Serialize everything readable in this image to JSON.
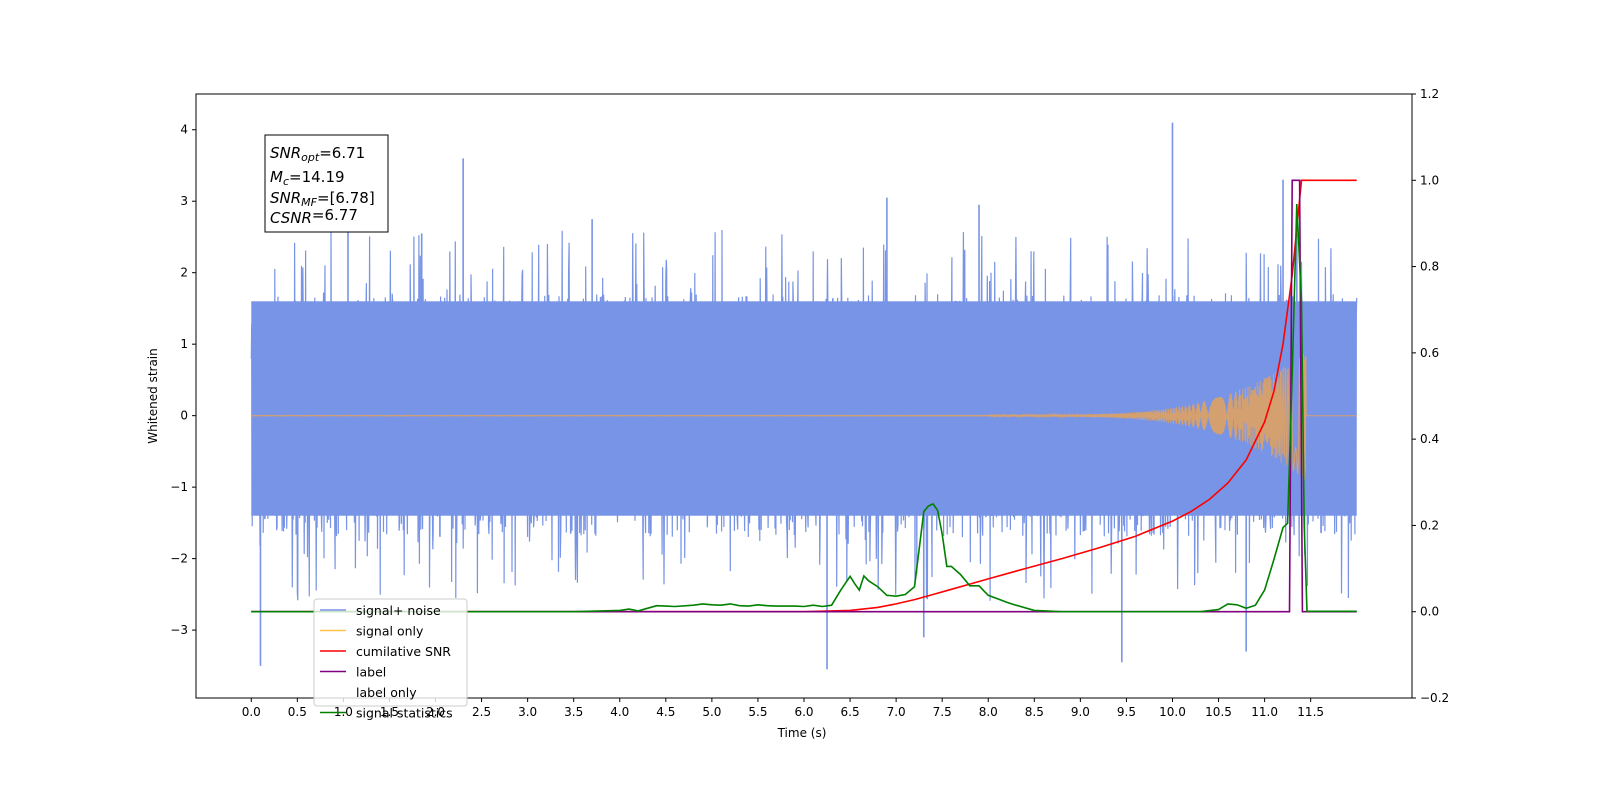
{
  "chart_data": {
    "type": "line",
    "xlabel": "Time (s)",
    "ylabel_left": "Whitened strain",
    "ylabel_right": "",
    "xlim": [
      -0.6,
      12.6
    ],
    "ylim_left": [
      -3.95,
      4.5
    ],
    "ylim_right": [
      -0.2,
      1.2
    ],
    "x_ticks": [
      "0.0",
      "0.5",
      "1.0",
      "1.5",
      "2.0",
      "2.5",
      "3.0",
      "3.5",
      "4.0",
      "4.5",
      "5.0",
      "5.5",
      "6.0",
      "6.5",
      "7.0",
      "7.5",
      "8.0",
      "8.5",
      "9.0",
      "9.5",
      "10.0",
      "10.5",
      "11.0",
      "11.5"
    ],
    "y_ticks_left": [
      "−3",
      "−2",
      "−1",
      "0",
      "1",
      "2",
      "3",
      "4"
    ],
    "y_ticks_right": [
      "−0.2",
      "0.0",
      "0.2",
      "0.4",
      "0.6",
      "0.8",
      "1.0",
      "1.2"
    ],
    "grid": false,
    "legend_position": "lower-left",
    "annotation": {
      "lines": [
        {
          "label": "SNR",
          "sub": "opt",
          "value": "=6.71"
        },
        {
          "label": "M",
          "sub": "c",
          "value": "=14.19"
        },
        {
          "label": "SNR",
          "sub": "MF",
          "value": "=[6.78]"
        },
        {
          "label": "CSNR",
          "sub": "",
          "value": "=6.77"
        }
      ]
    },
    "series": [
      {
        "name": "signal+ noise",
        "axis": "left",
        "color": "#7894e6",
        "kind": "noise",
        "x_range": [
          0.0,
          12.0
        ],
        "band": [
          -1.4,
          1.6
        ],
        "peaks": [
          [
            0.1,
            -3.5
          ],
          [
            1.05,
            2.95
          ],
          [
            2.3,
            3.6
          ],
          [
            6.25,
            -3.55
          ],
          [
            6.9,
            3.05
          ],
          [
            7.3,
            -3.1
          ],
          [
            9.45,
            -3.45
          ],
          [
            10.0,
            4.1
          ],
          [
            10.8,
            -3.3
          ],
          [
            11.2,
            3.3
          ],
          [
            11.35,
            2.55
          ],
          [
            1.85,
            2.55
          ],
          [
            3.7,
            2.75
          ],
          [
            7.9,
            2.95
          ]
        ]
      },
      {
        "name": "signal only",
        "axis": "left",
        "color": "#ffc24a",
        "kind": "chirp",
        "x_range": [
          0.0,
          12.0
        ]
      },
      {
        "name": "cumilative SNR",
        "axis": "right",
        "color": "#ff0000",
        "kind": "line",
        "x": [
          0,
          6.0,
          6.5,
          6.8,
          7.0,
          7.2,
          7.4,
          7.6,
          7.8,
          8.0,
          8.4,
          8.8,
          9.2,
          9.6,
          10.0,
          10.2,
          10.4,
          10.6,
          10.8,
          11.0,
          11.1,
          11.2,
          11.3,
          11.4,
          11.5,
          12.0
        ],
        "y": [
          0,
          0,
          0.003,
          0.01,
          0.018,
          0.028,
          0.04,
          0.052,
          0.064,
          0.076,
          0.1,
          0.123,
          0.148,
          0.175,
          0.21,
          0.232,
          0.26,
          0.298,
          0.352,
          0.44,
          0.51,
          0.62,
          0.78,
          1.0,
          1.0,
          1.0
        ]
      },
      {
        "name": "label",
        "axis": "right",
        "color": "#800080",
        "kind": "line",
        "x": [
          0,
          11.27,
          11.3,
          11.38,
          11.41,
          11.45,
          12.0
        ],
        "y": [
          0,
          0,
          1.0,
          1.0,
          0,
          0,
          0
        ]
      },
      {
        "name": "label only",
        "axis": "right",
        "color": "#000000",
        "kind": "hidden",
        "x": [],
        "y": []
      },
      {
        "name": "signal statistics",
        "axis": "right",
        "color": "#008000",
        "kind": "line",
        "x": [
          0,
          3.5,
          3.8,
          4.0,
          4.1,
          4.2,
          4.3,
          4.4,
          4.5,
          4.6,
          4.8,
          4.9,
          5.0,
          5.1,
          5.2,
          5.3,
          5.4,
          5.5,
          5.6,
          5.7,
          5.8,
          5.9,
          6.0,
          6.1,
          6.2,
          6.3,
          6.4,
          6.5,
          6.55,
          6.6,
          6.65,
          6.7,
          6.8,
          6.9,
          7.0,
          7.1,
          7.2,
          7.3,
          7.35,
          7.4,
          7.45,
          7.5,
          7.55,
          7.6,
          7.7,
          7.8,
          7.9,
          8.0,
          8.1,
          8.2,
          8.3,
          8.5,
          8.8,
          10.3,
          10.5,
          10.6,
          10.7,
          10.8,
          10.9,
          11.0,
          11.1,
          11.2,
          11.25,
          11.3,
          11.35,
          11.4,
          11.43,
          11.46,
          12.0
        ],
        "y": [
          0,
          0,
          0.002,
          0.003,
          0.006,
          0.002,
          0.008,
          0.014,
          0.013,
          0.012,
          0.015,
          0.018,
          0.016,
          0.015,
          0.018,
          0.014,
          0.013,
          0.016,
          0.014,
          0.013,
          0.013,
          0.013,
          0.012,
          0.015,
          0.012,
          0.015,
          0.05,
          0.082,
          0.065,
          0.05,
          0.083,
          0.072,
          0.058,
          0.038,
          0.036,
          0.04,
          0.058,
          0.232,
          0.245,
          0.25,
          0.235,
          0.18,
          0.105,
          0.105,
          0.086,
          0.06,
          0.06,
          0.038,
          0.03,
          0.022,
          0.015,
          0.003,
          0,
          0,
          0.005,
          0.018,
          0.016,
          0.008,
          0.015,
          0.05,
          0.12,
          0.195,
          0.205,
          0.55,
          0.945,
          0.72,
          0.2,
          0.001,
          0.001
        ]
      }
    ]
  }
}
